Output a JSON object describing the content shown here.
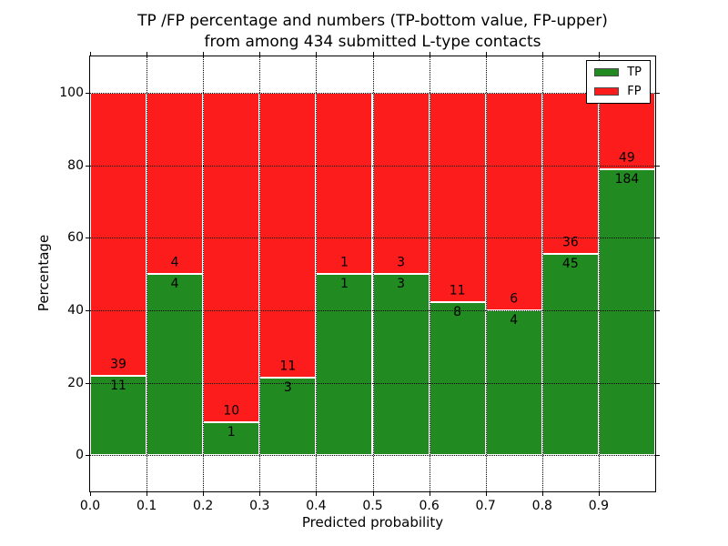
{
  "title": {
    "line1": "TP /FP percentage and numbers (TP-bottom value, FP-upper)",
    "line2": "from among 434 submitted L-type contacts"
  },
  "axes": {
    "xlabel": "Predicted probability",
    "ylabel": "Percentage"
  },
  "chart_data": {
    "type": "bar",
    "stacked": true,
    "normalized_to": "percent of each bin (TP+FP = 100%)",
    "title": "TP /FP percentage and numbers (TP-bottom value, FP-upper) from among 434 submitted L-type contacts",
    "xlabel": "Predicted probability",
    "ylabel": "Percentage",
    "xlim": [
      0.0,
      1.0
    ],
    "ylim": [
      -10,
      110
    ],
    "grid": true,
    "grid_style": "dotted",
    "legend_position": "upper right",
    "bin_width": 0.1,
    "bin_edges": [
      0.0,
      0.1,
      0.2,
      0.3,
      0.4,
      0.5,
      0.6,
      0.7,
      0.8,
      0.9,
      1.0
    ],
    "categories": [
      "0.0-0.1",
      "0.1-0.2",
      "0.2-0.3",
      "0.3-0.4",
      "0.4-0.5",
      "0.5-0.6",
      "0.6-0.7",
      "0.7-0.8",
      "0.8-0.9",
      "0.9-1.0"
    ],
    "x_tick_labels": [
      "0.0",
      "0.1",
      "0.2",
      "0.3",
      "0.4",
      "0.5",
      "0.6",
      "0.7",
      "0.8",
      "0.9"
    ],
    "y_tick_labels": [
      "0",
      "20",
      "40",
      "60",
      "80",
      "100"
    ],
    "series": [
      {
        "name": "TP",
        "color": "#218a21",
        "counts": [
          11,
          4,
          1,
          3,
          1,
          3,
          8,
          4,
          45,
          184
        ]
      },
      {
        "name": "FP",
        "color": "#fc1c1c",
        "counts": [
          39,
          4,
          10,
          11,
          1,
          3,
          11,
          6,
          36,
          49
        ]
      }
    ],
    "tp_percent_by_bin": [
      22.0,
      50.0,
      9.1,
      21.4,
      50.0,
      50.0,
      42.1,
      40.0,
      55.6,
      79.0
    ],
    "total_contacts": 434,
    "bar_edge_color": "#ffffff"
  }
}
